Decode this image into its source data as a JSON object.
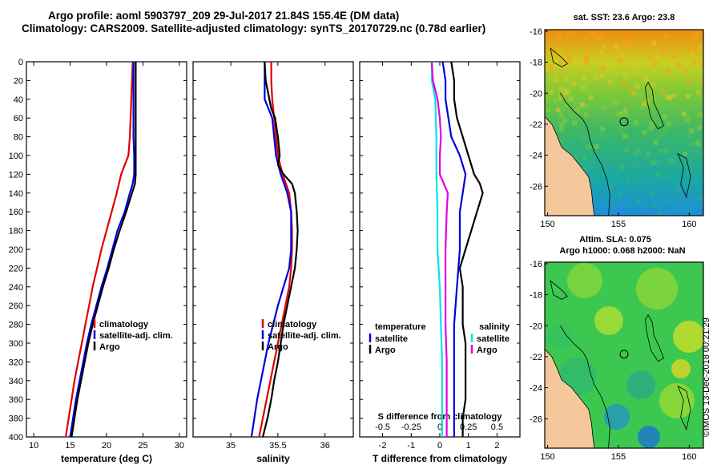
{
  "header": {
    "line1": "Argo profile: aoml 5903797_209 29-Jul-2017 21.84S 155.4E (DM data)",
    "line2": "Climatology: CARS2009. Satellite-adjusted climatology: synTS_20170729.nc (0.78d earlier)"
  },
  "copyright": "©IMOS 13-Dec-2018 00:21:29",
  "colors": {
    "clim": "#e00000",
    "sat": "#0000dd",
    "argo": "#000000",
    "sat_s": "#00e5e5",
    "argo_s": "#e000e0"
  },
  "chart_data": [
    {
      "id": "temperature",
      "type": "line",
      "xlabel": "temperature (deg C)",
      "ylabel": "",
      "xlim": [
        9,
        31
      ],
      "ylim": [
        0,
        400
      ],
      "xticks": [
        10,
        15,
        20,
        25,
        30
      ],
      "yticks": [
        0,
        20,
        40,
        60,
        80,
        100,
        120,
        140,
        160,
        180,
        200,
        220,
        240,
        260,
        280,
        300,
        320,
        340,
        360,
        380,
        400
      ],
      "legend": [
        "climatology",
        "satellite-adj. clim.",
        "Argo"
      ],
      "series": [
        {
          "name": "climatology",
          "color": "clim",
          "depth": [
            0,
            20,
            40,
            60,
            80,
            100,
            110,
            120,
            140,
            160,
            180,
            200,
            220,
            240,
            260,
            280,
            300,
            320,
            340,
            360,
            380,
            400
          ],
          "values": [
            23.6,
            23.5,
            23.4,
            23.3,
            23.2,
            23.0,
            22.5,
            22.0,
            21.4,
            20.7,
            20.0,
            19.3,
            18.7,
            18.1,
            17.6,
            17.1,
            16.6,
            16.1,
            15.6,
            15.2,
            14.8,
            14.4
          ]
        },
        {
          "name": "satellite-adj. clim.",
          "color": "sat",
          "depth": [
            0,
            20,
            40,
            60,
            80,
            100,
            120,
            130,
            140,
            160,
            180,
            200,
            220,
            240,
            260,
            280,
            300,
            320,
            340,
            360,
            380,
            400
          ],
          "values": [
            23.7,
            23.7,
            23.7,
            23.7,
            23.7,
            23.8,
            23.8,
            23.6,
            23.2,
            22.5,
            21.5,
            20.8,
            20.1,
            19.3,
            18.6,
            17.9,
            17.3,
            16.8,
            16.3,
            15.8,
            15.4,
            15.0
          ]
        },
        {
          "name": "Argo",
          "color": "argo",
          "depth": [
            0,
            20,
            40,
            60,
            80,
            100,
            120,
            130,
            140,
            160,
            180,
            200,
            220,
            240,
            260,
            280,
            300,
            320,
            340,
            360,
            380,
            400
          ],
          "values": [
            24.0,
            24.0,
            24.0,
            24.0,
            24.0,
            24.0,
            24.0,
            23.9,
            23.5,
            22.7,
            21.8,
            21.0,
            20.3,
            19.5,
            18.8,
            18.1,
            17.5,
            17.0,
            16.5,
            16.0,
            15.6,
            15.2
          ]
        }
      ]
    },
    {
      "id": "salinity",
      "type": "line",
      "xlabel": "salinity",
      "ylabel": "",
      "xlim": [
        34.6,
        36.3
      ],
      "ylim": [
        0,
        400
      ],
      "xticks": [
        35,
        35.5,
        36
      ],
      "legend": [
        "climatology",
        "satellite-adj. clim.",
        "Argo"
      ],
      "series": [
        {
          "name": "climatology",
          "color": "clim",
          "depth": [
            0,
            20,
            40,
            60,
            80,
            100,
            120,
            140,
            160,
            180,
            200,
            220,
            240,
            260,
            280,
            300,
            320,
            340,
            360,
            380,
            400
          ],
          "values": [
            35.43,
            35.43,
            35.44,
            35.46,
            35.48,
            35.5,
            35.55,
            35.62,
            35.64,
            35.65,
            35.65,
            35.64,
            35.62,
            35.58,
            35.54,
            35.5,
            35.46,
            35.42,
            35.38,
            35.34,
            35.3
          ]
        },
        {
          "name": "satellite-adj. clim.",
          "color": "sat",
          "depth": [
            0,
            20,
            40,
            50,
            60,
            80,
            100,
            120,
            140,
            160,
            180,
            200,
            220,
            240,
            260,
            280,
            300,
            320,
            340,
            360,
            380,
            400
          ],
          "values": [
            35.36,
            35.36,
            35.36,
            35.4,
            35.44,
            35.46,
            35.48,
            35.53,
            35.6,
            35.64,
            35.64,
            35.64,
            35.62,
            35.56,
            35.5,
            35.45,
            35.4,
            35.36,
            35.32,
            35.28,
            35.25,
            35.22
          ]
        },
        {
          "name": "Argo",
          "color": "argo",
          "depth": [
            0,
            20,
            35,
            50,
            60,
            80,
            100,
            110,
            120,
            130,
            140,
            160,
            180,
            200,
            220,
            240,
            260,
            280,
            300,
            320,
            340,
            360,
            380,
            400
          ],
          "values": [
            35.36,
            35.37,
            35.4,
            35.43,
            35.47,
            35.5,
            35.52,
            35.5,
            35.56,
            35.65,
            35.68,
            35.7,
            35.71,
            35.7,
            35.68,
            35.64,
            35.6,
            35.56,
            35.53,
            35.5,
            35.46,
            35.43,
            35.39,
            35.34
          ]
        }
      ]
    },
    {
      "id": "difference",
      "type": "line",
      "xlabel": "T difference from climatology",
      "ylabel": "",
      "x2label": "S difference from climatology",
      "xlim": [
        -2.8,
        2.8
      ],
      "ylim": [
        0,
        400
      ],
      "xticks": [
        -2,
        -1,
        0,
        1,
        2
      ],
      "x2lim": [
        -0.7,
        0.7
      ],
      "x2ticks": [
        -0.5,
        -0.25,
        0,
        0.25,
        0.5
      ],
      "legend_left_title": "temperature",
      "legend_right_title": "salinity",
      "legend_left": [
        "satellite",
        "Argo"
      ],
      "legend_right": [
        "satellite",
        "Argo"
      ],
      "series": [
        {
          "name": "T satellite",
          "axis": "T",
          "color": "sat",
          "depth": [
            0,
            20,
            40,
            60,
            80,
            100,
            120,
            140,
            160,
            180,
            200,
            240,
            280,
            320,
            360,
            400
          ],
          "values": [
            0.1,
            0.2,
            0.2,
            0.3,
            0.4,
            0.7,
            0.9,
            0.8,
            0.7,
            0.7,
            0.7,
            0.6,
            0.5,
            0.5,
            0.5,
            0.5
          ]
        },
        {
          "name": "T Argo",
          "axis": "T",
          "color": "argo",
          "depth": [
            0,
            20,
            40,
            60,
            80,
            100,
            120,
            130,
            140,
            160,
            180,
            200,
            220,
            240,
            260,
            280,
            300,
            320,
            340,
            360,
            380,
            400
          ],
          "values": [
            0.4,
            0.5,
            0.5,
            0.6,
            0.8,
            1.0,
            1.2,
            1.4,
            1.5,
            1.3,
            1.1,
            0.9,
            0.7,
            0.8,
            0.8,
            0.8,
            0.9,
            0.9,
            0.9,
            0.9,
            0.8,
            0.8
          ]
        },
        {
          "name": "S satellite",
          "axis": "S",
          "color": "sat_s",
          "depth": [
            0,
            20,
            40,
            80,
            120,
            160,
            200,
            240,
            280,
            320,
            360,
            400
          ],
          "values": [
            -0.07,
            -0.07,
            -0.04,
            -0.03,
            -0.03,
            -0.02,
            -0.02,
            0.0,
            0.01,
            0.02,
            0.02,
            0.02
          ]
        },
        {
          "name": "S Argo",
          "axis": "S",
          "color": "argo_s",
          "depth": [
            0,
            20,
            40,
            60,
            80,
            100,
            120,
            140,
            160,
            200,
            240,
            280,
            320,
            360,
            400
          ],
          "values": [
            -0.07,
            -0.06,
            -0.02,
            0.0,
            0.01,
            0.0,
            0.0,
            0.07,
            0.06,
            0.05,
            0.05,
            0.05,
            0.06,
            0.06,
            0.06
          ]
        }
      ]
    }
  ],
  "maps": [
    {
      "id": "sst",
      "title1": "sat. SST: 23.6 Argo: 23.8",
      "title2": "",
      "xticks": [
        150,
        155,
        160
      ],
      "yticks": [
        -16,
        -18,
        -20,
        -22,
        -24,
        -26
      ],
      "xlim": [
        149.8,
        161.0
      ],
      "ylim": [
        -27.9,
        -15.9
      ],
      "argo_lon": 155.4,
      "argo_lat": -21.84
    },
    {
      "id": "sla",
      "title1": "Altim. SLA: 0.075",
      "title2": "Argo h1000: 0.068 h2000: NaN",
      "xticks": [
        150,
        155,
        160
      ],
      "yticks": [
        -16,
        -18,
        -20,
        -22,
        -24,
        -26
      ],
      "xlim": [
        149.8,
        161.0
      ],
      "ylim": [
        -27.9,
        -15.9
      ],
      "argo_lon": 155.4,
      "argo_lat": -21.84
    }
  ]
}
